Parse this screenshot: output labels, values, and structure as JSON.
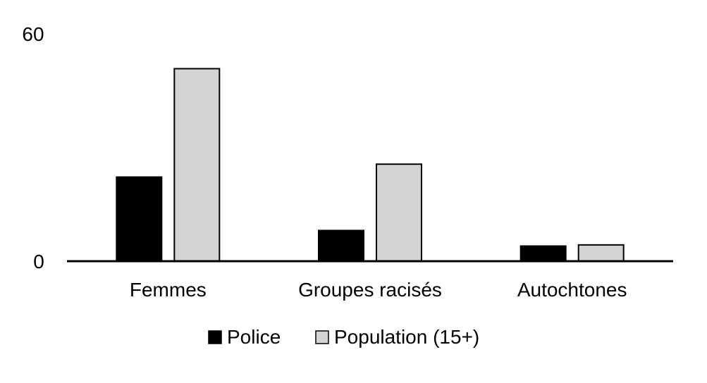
{
  "chart_data": {
    "type": "bar",
    "categories": [
      "Femmes",
      "Groupes racisés",
      "Autochtones"
    ],
    "series": [
      {
        "name": "Police",
        "values": [
          22.2,
          8.1,
          4.0
        ],
        "color": "#000000"
      },
      {
        "name": "Population (15+)",
        "values": [
          50.8,
          25.6,
          4.3
        ],
        "color": "#d3d3d3"
      }
    ],
    "ylim": [
      0,
      60
    ],
    "yticks": [
      "0",
      "60"
    ],
    "grid": false,
    "legend_position": "bottom"
  }
}
